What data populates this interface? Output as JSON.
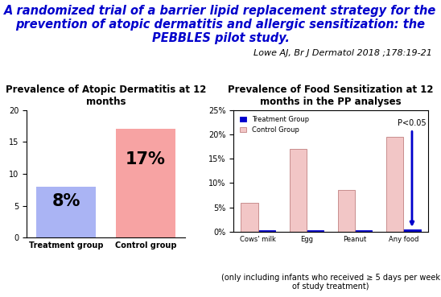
{
  "title": "A randomized trial of a barrier lipid replacement strategy for the prevention of atopic dermatitis and allergic sensitization: the PEBBLES pilot study.",
  "citation": "Lowe AJ, Br J Dermatol 2018 ;178:19-21",
  "footnote": "(only including infants who received ≥ 5 days per week of study treatment)",
  "chart_data": [
    {
      "type": "bar",
      "title": "Prevalence of Atopic Dermatitis at 12 months",
      "categories": [
        "Treatment group",
        "Control group"
      ],
      "values": [
        8,
        17
      ],
      "value_labels": [
        "8%",
        "17%"
      ],
      "data_labels": true,
      "colors": [
        "#aab4f4",
        "#f7a3a3"
      ],
      "ylim": [
        0,
        20
      ],
      "yticks": [
        0,
        5,
        10,
        15,
        20
      ],
      "grid": false
    },
    {
      "type": "bar",
      "title": "Prevalence of Food Sensitization at 12 months in the PP analyses",
      "categories": [
        "Cows' milk",
        "Egg",
        "Peanut",
        "Any food"
      ],
      "series": [
        {
          "name": "Treatment Group",
          "color": "#0000cc",
          "values": [
            0.3,
            0.3,
            0.3,
            0.5
          ]
        },
        {
          "name": "Control Group",
          "color": "#f2c6c6",
          "values": [
            6,
            17,
            8.5,
            19.5
          ]
        }
      ],
      "legend": "upper left",
      "grid": false,
      "data_labels": false,
      "ylim": [
        0,
        25
      ],
      "yticks": [
        {
          "value": 0,
          "label": "0%"
        },
        {
          "value": 5,
          "label": "5%"
        },
        {
          "value": 10,
          "label": "10%"
        },
        {
          "value": 15,
          "label": "15%"
        },
        {
          "value": 20,
          "label": "20%"
        },
        {
          "value": 25,
          "label": "25%"
        }
      ],
      "annotations": [
        {
          "text": "P<0.05",
          "category": "Any food",
          "series": "Treatment Group"
        }
      ]
    }
  ]
}
